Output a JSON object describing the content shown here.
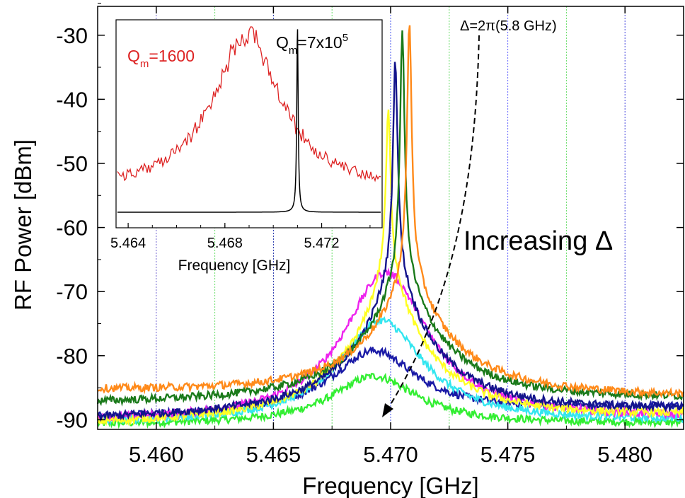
{
  "chart_data": [
    {
      "type": "line",
      "xlabel": "Frequency [GHz]",
      "ylabel": "RF Power [dBm]",
      "xlim": [
        5.4575,
        5.4825
      ],
      "ylim": [
        -91.5,
        -25.5
      ],
      "x_ticks": [
        "5.460",
        "5.465",
        "5.470",
        "5.475",
        "5.480"
      ],
      "y_ticks": [
        "-30",
        "-40",
        "-50",
        "-60",
        "-70",
        "-80",
        "-90"
      ],
      "vertical_reference_lines": [
        {
          "x": 5.46,
          "color": "#6a5acd"
        },
        {
          "x": 5.4625,
          "color": "#66dd66"
        },
        {
          "x": 5.465,
          "color": "#2233aa"
        },
        {
          "x": 5.4675,
          "color": "#66dd66"
        },
        {
          "x": 5.47,
          "color": "#4455ee"
        },
        {
          "x": 5.4725,
          "color": "#66dd66"
        },
        {
          "x": 5.475,
          "color": "#6666ff"
        },
        {
          "x": 5.4775,
          "color": "#66dd66"
        },
        {
          "x": 5.48,
          "color": "#4444dd"
        }
      ],
      "annotations": {
        "detuning": "Δ=2π(5.8 GHz)",
        "increasing": "Increasing Δ"
      },
      "series": [
        {
          "color": "#33ee33",
          "peak_x": 5.4693,
          "peak_y": -83.2,
          "left_y": -90.8,
          "right_y": -90.6,
          "spike_y": -83.2
        },
        {
          "color": "#1a1aa6",
          "peak_x": 5.4693,
          "peak_y": -79.2,
          "left_y": -89.8,
          "right_y": -88.0,
          "spike_y": -79.2
        },
        {
          "color": "#33e6f0",
          "peak_x": 5.4696,
          "peak_y": -74.5,
          "left_y": -90.6,
          "right_y": -90.2,
          "spike_y": -74.5
        },
        {
          "color": "#ee22ee",
          "peak_x": 5.4698,
          "peak_y": -67.0,
          "left_y": -90.4,
          "right_y": -89.8,
          "spike_y": -67.0
        },
        {
          "color": "#ffff22",
          "peak_x": 5.4699,
          "peak_y": -41.8,
          "left_y": -90.8,
          "right_y": -89.5,
          "spike_y": -41.8
        },
        {
          "color": "#14148c",
          "peak_x": 5.4702,
          "peak_y": -33.8,
          "left_y": -90.0,
          "right_y": -88.5,
          "spike_y": -33.8
        },
        {
          "color": "#1a7a1a",
          "peak_x": 5.4705,
          "peak_y": -29.6,
          "left_y": -87.5,
          "right_y": -86.8,
          "spike_y": -29.6
        },
        {
          "color": "#ff8a1a",
          "peak_x": 5.4708,
          "peak_y": -27.9,
          "left_y": -85.5,
          "right_y": -86.5,
          "spike_y": -27.9
        }
      ]
    },
    {
      "type": "line",
      "xlabel": "Frequency [GHz]",
      "ylabel": "",
      "xlim": [
        5.4635,
        5.4745
      ],
      "x_ticks": [
        "5.464",
        "5.468",
        "5.472"
      ],
      "series": [
        {
          "label": "Q_m=1600",
          "label_main": "Q",
          "label_sub": "m",
          "label_rest": "=1600",
          "color": "#dd2222",
          "center": 5.4689,
          "peak_y": -28,
          "floor_y": -58
        },
        {
          "label": "Q_m=7x10^5",
          "label_main": "Q",
          "label_sub": "m",
          "label_rest": "=7x10",
          "label_sup": "5",
          "color": "#000000",
          "center": 5.471,
          "peak_y": -28,
          "floor_y": -58
        }
      ]
    }
  ]
}
